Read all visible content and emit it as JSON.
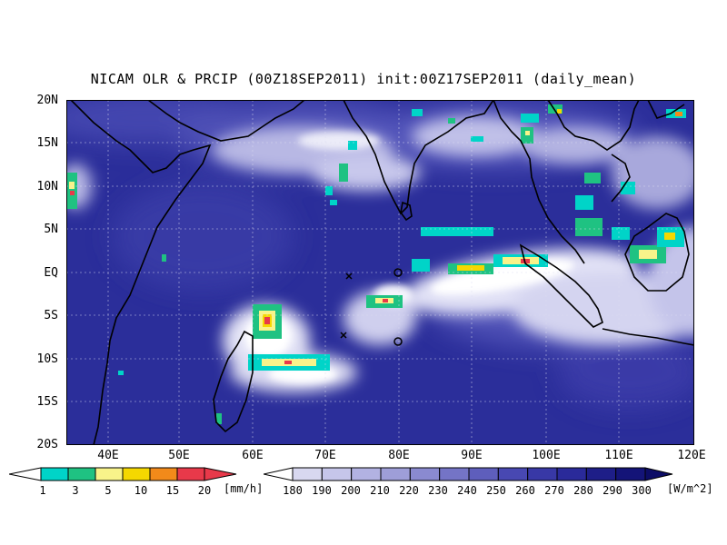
{
  "title": "NICAM OLR & PRCIP (00Z18SEP2011) init:00Z17SEP2011 (daily_mean)",
  "axes": {
    "lat_labels": [
      "20N",
      "15N",
      "10N",
      "5N",
      "EQ",
      "5S",
      "10S",
      "15S",
      "20S"
    ],
    "lon_labels": [
      "40E",
      "50E",
      "60E",
      "70E",
      "80E",
      "90E",
      "100E",
      "110E",
      "120E"
    ]
  },
  "precip_colorbar": {
    "labels": [
      "1",
      "3",
      "5",
      "10",
      "15",
      "20"
    ],
    "unit": "[mm/h]",
    "colors": [
      "#00d4c8",
      "#1fc282",
      "#f8f38a",
      "#f5d800",
      "#f28a1a",
      "#e8394a"
    ]
  },
  "olr_colorbar": {
    "labels": [
      "180",
      "190",
      "200",
      "210",
      "220",
      "230",
      "240",
      "250",
      "260",
      "270",
      "280",
      "290",
      "300"
    ],
    "unit": "[W/m^2]",
    "colors": [
      "#eeeef8",
      "#d8d8f0",
      "#c6c6ea",
      "#b2b2e2",
      "#9e9ed8",
      "#8a8ad0",
      "#7474c6",
      "#5e5ebc",
      "#4848b2",
      "#3838a6",
      "#2a2a9a",
      "#1e1e88",
      "#141478",
      "#0c0c66"
    ]
  },
  "map_colors": {
    "ocean_deep": "#2b2e9a",
    "cloud_white": "#ffffff"
  }
}
